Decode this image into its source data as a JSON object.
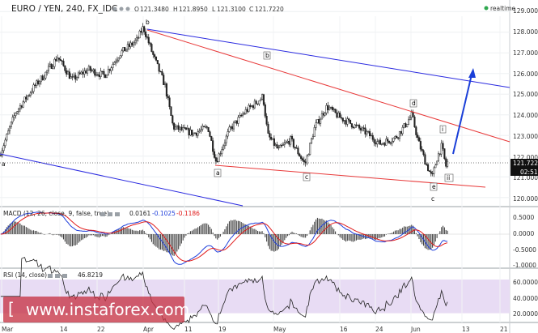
{
  "header": {
    "symbol": "EURO / YEN, 240, FX_IDC",
    "ohlc_label": "O",
    "open": "121.3480",
    "high_label": "H",
    "high": "121.8950",
    "low_label": "L",
    "low": "121.3100",
    "close_label": "C",
    "close": "121.7220",
    "realtime": "realtime"
  },
  "price_axis": {
    "ticks": [
      "129.0000",
      "128.0000",
      "127.0000",
      "126.0000",
      "125.0000",
      "124.0000",
      "123.0000",
      "122.0000",
      "121.0000",
      "120.0000"
    ],
    "last_price": "121.7220",
    "countdown": "02:51"
  },
  "macd": {
    "label": "MACD (12, 26, close, 9, false, true)",
    "v1": "0.0161",
    "v2": "-0.1025",
    "v3": "-0.1186",
    "ticks": [
      "0.5000",
      "0.0000",
      "-0.5000",
      "-1.0000"
    ],
    "colors": {
      "macd": "#1f3fdb",
      "signal": "#e01b1b",
      "hist": "#444444"
    }
  },
  "rsi": {
    "label": "RSI (14, close)",
    "value": "46.8219",
    "ticks": [
      "60.0000",
      "40.0000",
      "20.0000"
    ]
  },
  "xaxis": {
    "ticks": [
      "Mar",
      "14",
      "22",
      "Apr",
      "11",
      "19",
      "May",
      "16",
      "24",
      "Jun",
      "13",
      "21"
    ]
  },
  "wave_labels": {
    "a1": "a",
    "b1": "b",
    "b2": "b",
    "a2": "a",
    "c1": "c",
    "d": "d",
    "e": "e",
    "c2": "c",
    "i": "i",
    "ii": "ii"
  },
  "watermark": "www.instaforex.com",
  "colors": {
    "channel_blue": "#2a2ae0",
    "channel_red": "#e83a3a",
    "projection": "#1a3fd8",
    "rsi_band": "#e8dcf4",
    "up_candle": "#ffffff",
    "down_candle": "#222222"
  },
  "chart_data": {
    "type": "candlestick",
    "timeframe": "240",
    "ylim": [
      119.6,
      129.4
    ],
    "rsi_band": [
      30,
      70
    ],
    "last": 121.722,
    "anchors": [
      {
        "x": 0,
        "price": 122.05
      },
      {
        "x": 3,
        "price": 122.3
      },
      {
        "x": 20,
        "price": 124.1
      },
      {
        "x": 42,
        "price": 125.3
      },
      {
        "x": 55,
        "price": 125.9
      },
      {
        "x": 72,
        "price": 126.8
      },
      {
        "x": 90,
        "price": 125.7
      },
      {
        "x": 110,
        "price": 126.2
      },
      {
        "x": 130,
        "price": 125.9
      },
      {
        "x": 150,
        "price": 127.0
      },
      {
        "x": 170,
        "price": 127.6
      },
      {
        "x": 178,
        "price": 128.25
      },
      {
        "x": 190,
        "price": 126.9
      },
      {
        "x": 205,
        "price": 125.4
      },
      {
        "x": 215,
        "price": 123.4
      },
      {
        "x": 240,
        "price": 123.1
      },
      {
        "x": 258,
        "price": 123.4
      },
      {
        "x": 268,
        "price": 121.75
      },
      {
        "x": 285,
        "price": 123.3
      },
      {
        "x": 305,
        "price": 124.2
      },
      {
        "x": 318,
        "price": 124.6
      },
      {
        "x": 326,
        "price": 124.9
      },
      {
        "x": 332,
        "price": 123.0
      },
      {
        "x": 345,
        "price": 122.3
      },
      {
        "x": 360,
        "price": 122.8
      },
      {
        "x": 378,
        "price": 121.6
      },
      {
        "x": 390,
        "price": 123.4
      },
      {
        "x": 405,
        "price": 124.4
      },
      {
        "x": 420,
        "price": 123.9
      },
      {
        "x": 438,
        "price": 123.5
      },
      {
        "x": 455,
        "price": 123.1
      },
      {
        "x": 470,
        "price": 122.6
      },
      {
        "x": 490,
        "price": 122.9
      },
      {
        "x": 500,
        "price": 123.4
      },
      {
        "x": 510,
        "price": 124.0
      },
      {
        "x": 518,
        "price": 122.7
      },
      {
        "x": 527,
        "price": 121.7
      },
      {
        "x": 535,
        "price": 120.95
      },
      {
        "x": 541,
        "price": 121.9
      },
      {
        "x": 547,
        "price": 122.5
      },
      {
        "x": 552,
        "price": 121.5
      },
      {
        "x": 554,
        "price": 121.72
      }
    ]
  }
}
